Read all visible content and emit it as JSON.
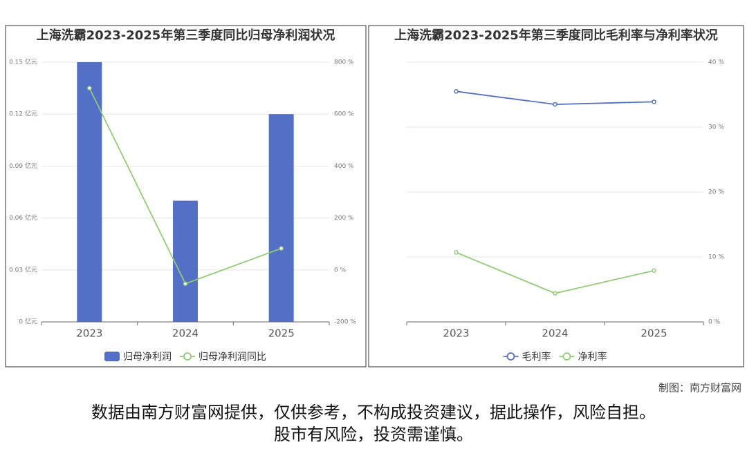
{
  "chart_data": [
    {
      "type": "bar",
      "title": "上海洗霸2023-2025年第三季度同比归母净利润状况",
      "categories": [
        "2023",
        "2024",
        "2025"
      ],
      "series": [
        {
          "name": "归母净利润",
          "type": "bar",
          "color": "#5470c6",
          "values": [
            0.15,
            0.07,
            0.12
          ]
        },
        {
          "name": "归母净利润同比",
          "type": "line",
          "axis": "y2",
          "color": "#91cc75",
          "values": [
            700,
            -53,
            83
          ]
        }
      ],
      "ylim": [
        0,
        0.15
      ],
      "yticks": [
        {
          "value": 0,
          "label": "0 亿元"
        },
        {
          "value": 0.03,
          "label": "0.03 亿元"
        },
        {
          "value": 0.06,
          "label": "0.06 亿元"
        },
        {
          "value": 0.09,
          "label": "0.09 亿元"
        },
        {
          "value": 0.12,
          "label": "0.12 亿元"
        },
        {
          "value": 0.15,
          "label": "0.15 亿元"
        }
      ],
      "y2lim": [
        -200,
        800
      ],
      "y2ticks": [
        {
          "value": -200,
          "label": "-200 %"
        },
        {
          "value": 0,
          "label": "0 %"
        },
        {
          "value": 200,
          "label": "200 %"
        },
        {
          "value": 400,
          "label": "400 %"
        },
        {
          "value": 600,
          "label": "600 %"
        },
        {
          "value": 800,
          "label": "800 %"
        }
      ],
      "grid": true
    },
    {
      "type": "line",
      "title": "上海洗霸2023-2025年第三季度同比毛利率与净利率状况",
      "categories": [
        "2023",
        "2024",
        "2025"
      ],
      "series": [
        {
          "name": "毛利率",
          "type": "line",
          "axis": "y2",
          "color": "#5470c6",
          "values": [
            35.5,
            33.5,
            33.9
          ]
        },
        {
          "name": "净利率",
          "type": "line",
          "axis": "y2",
          "color": "#91cc75",
          "values": [
            10.7,
            4.4,
            7.9
          ]
        }
      ],
      "y2lim": [
        0,
        40
      ],
      "y2ticks": [
        {
          "value": 0,
          "label": "0 %"
        },
        {
          "value": 10,
          "label": "10 %"
        },
        {
          "value": 20,
          "label": "20 %"
        },
        {
          "value": 30,
          "label": "30 %"
        },
        {
          "value": 40,
          "label": "40 %"
        }
      ],
      "grid": true
    }
  ],
  "footer": {
    "credit": "制图：南方财富网",
    "disclaimer": [
      "数据由南方财富网提供，仅供参考，不构成投资建议，据此操作，风险自担。",
      "股市有风险，投资需谨慎。"
    ]
  }
}
